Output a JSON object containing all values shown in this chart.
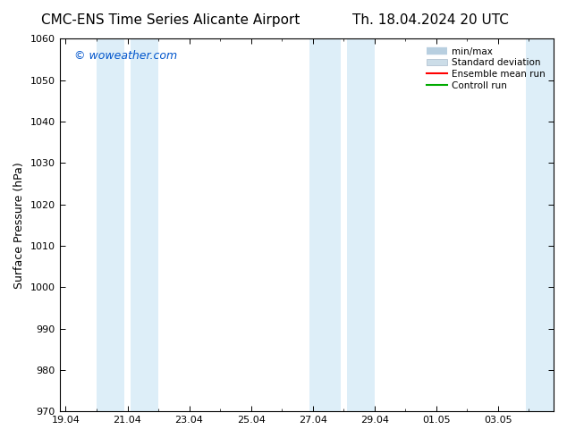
{
  "title_left": "CMC-ENS Time Series Alicante Airport",
  "title_right": "Th. 18.04.2024 20 UTC",
  "ylabel": "Surface Pressure (hPa)",
  "ylim": [
    970,
    1060
  ],
  "yticks": [
    970,
    980,
    990,
    1000,
    1010,
    1020,
    1030,
    1040,
    1050,
    1060
  ],
  "x_tick_labels": [
    "19.04",
    "21.04",
    "23.04",
    "25.04",
    "27.04",
    "29.04",
    "01.05",
    "03.05"
  ],
  "x_tick_positions": [
    0,
    2,
    4,
    6,
    8,
    10,
    12,
    14
  ],
  "xlim": [
    -0.2,
    15.8
  ],
  "shaded_bands": [
    {
      "x_start": 1.0,
      "x_end": 1.9,
      "color": "#ddeef8"
    },
    {
      "x_start": 2.1,
      "x_end": 3.0,
      "color": "#ddeef8"
    },
    {
      "x_start": 7.9,
      "x_end": 8.9,
      "color": "#ddeef8"
    },
    {
      "x_start": 9.1,
      "x_end": 10.0,
      "color": "#ddeef8"
    },
    {
      "x_start": 14.9,
      "x_end": 16.0,
      "color": "#ddeef8"
    }
  ],
  "watermark": "© woweather.com",
  "watermark_color": "#0055cc",
  "bg_color": "#ffffff",
  "plot_bg_color": "#ffffff",
  "legend_entries": [
    "min/max",
    "Standard deviation",
    "Ensemble mean run",
    "Controll run"
  ],
  "minmax_color": "#b8cfe0",
  "std_color": "#ccdde8",
  "mean_color": "#ff0000",
  "ctrl_color": "#00aa00",
  "title_fontsize": 11,
  "axis_label_fontsize": 9,
  "tick_fontsize": 8,
  "watermark_fontsize": 9,
  "legend_fontsize": 7.5
}
